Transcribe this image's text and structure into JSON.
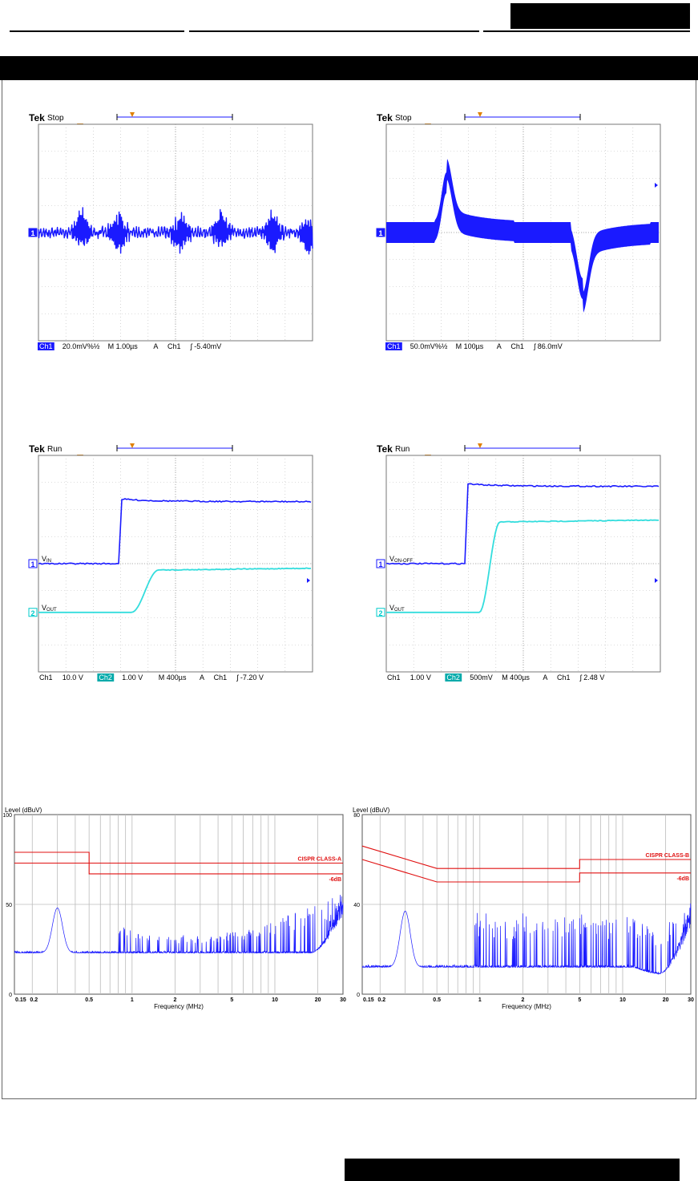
{
  "scopes": [
    {
      "id": "ripple",
      "brand": "Tek",
      "mode": "Stop",
      "status": [
        {
          "t": "Ch1",
          "boxed": true
        },
        {
          "t": "20.0mV%½",
          "boxed": false
        },
        {
          "t": "M 1.00µs",
          "boxed": false
        },
        {
          "t": "A",
          "boxed": false
        },
        {
          "t": "Ch1",
          "boxed": false
        },
        {
          "t": "ʃ -5.40mV",
          "boxed": false
        }
      ],
      "markers": [
        {
          "label": "1",
          "level": 0.5
        }
      ],
      "trace_color": "#1a1aff"
    },
    {
      "id": "transient",
      "brand": "Tek",
      "mode": "Stop",
      "status": [
        {
          "t": "Ch1",
          "boxed": true
        },
        {
          "t": "50.0mV%½",
          "boxed": false
        },
        {
          "t": "M 100µs",
          "boxed": false
        },
        {
          "t": "A",
          "boxed": false
        },
        {
          "t": "Ch1",
          "boxed": false
        },
        {
          "t": "ʃ  86.0mV",
          "boxed": false
        }
      ],
      "markers": [
        {
          "label": "1",
          "level": 0.5
        }
      ],
      "trace_color": "#1a1aff"
    },
    {
      "id": "startup-vin",
      "brand": "Tek",
      "mode": "Run",
      "status": [
        {
          "t": "Ch1",
          "boxed": false
        },
        {
          "t": "10.0 V",
          "boxed": false
        },
        {
          "t": "Ch2",
          "boxed": true
        },
        {
          "t": "1.00 V",
          "boxed": false
        },
        {
          "t": "M 400µs",
          "boxed": false
        },
        {
          "t": "A",
          "boxed": false
        },
        {
          "t": "Ch1",
          "boxed": false
        },
        {
          "t": "ʃ -7.20 V",
          "boxed": false
        }
      ],
      "markers": [
        {
          "label": "1",
          "level": 0.5,
          "name": "V",
          "sub": "IN"
        },
        {
          "label": "2",
          "level": 0.725,
          "name": "V",
          "sub": "OUT"
        }
      ],
      "trace_color": "#1a1aff"
    },
    {
      "id": "startup-onoff",
      "brand": "Tek",
      "mode": "Run",
      "status": [
        {
          "t": "Ch1",
          "boxed": false
        },
        {
          "t": "1.00 V",
          "boxed": false
        },
        {
          "t": "Ch2",
          "boxed": true
        },
        {
          "t": "500mV",
          "boxed": false
        },
        {
          "t": "M 400µs",
          "boxed": false
        },
        {
          "t": "A",
          "boxed": false
        },
        {
          "t": "Ch1",
          "boxed": false
        },
        {
          "t": "ʃ  2.48 V",
          "boxed": false
        }
      ],
      "markers": [
        {
          "label": "1",
          "level": 0.5,
          "name": "V",
          "sub": "ON-OFF"
        },
        {
          "label": "2",
          "level": 0.725,
          "name": "V",
          "sub": "OUT"
        }
      ],
      "trace_color": "#1a1aff"
    }
  ],
  "chart_data": [
    {
      "type": "line",
      "title": "",
      "ylabel": "Level (dBuV)",
      "xlabel": "Frequency (MHz)",
      "x_scale": "log",
      "xlim": [
        0.15,
        30
      ],
      "ylim": [
        0,
        100
      ],
      "ytick_labels": [
        "0",
        "50",
        "100"
      ],
      "xtick_labels": [
        {
          "v": 0.15,
          "t": "0.15"
        },
        {
          "v": 0.2,
          "t": "0.2"
        },
        {
          "v": 0.5,
          "t": "0.5"
        },
        {
          "v": 1,
          "t": "1"
        },
        {
          "v": 2,
          "t": "2"
        },
        {
          "v": 5,
          "t": "5"
        },
        {
          "v": 10,
          "t": "10"
        },
        {
          "v": 20,
          "t": "20"
        },
        {
          "v": 30,
          "t": "30"
        }
      ],
      "limit_lines": [
        {
          "name": "CISPR CLASS-A",
          "points": [
            [
              0.15,
              79
            ],
            [
              0.5,
              79
            ],
            [
              0.5,
              73
            ],
            [
              30,
              73
            ]
          ]
        },
        {
          "name": "-6dB",
          "points": [
            [
              0.15,
              73
            ],
            [
              0.5,
              73
            ],
            [
              0.5,
              67
            ],
            [
              30,
              67
            ]
          ]
        }
      ],
      "emission_peaks": [
        {
          "x": 0.3,
          "y": 48
        },
        {
          "x": 0.9,
          "y": 35
        },
        {
          "x": 1.2,
          "y": 32
        },
        {
          "x": 1.7,
          "y": 32
        },
        {
          "x": 2.5,
          "y": 33
        },
        {
          "x": 5,
          "y": 34
        },
        {
          "x": 10,
          "y": 34
        },
        {
          "x": 20,
          "y": 40
        },
        {
          "x": 30,
          "y": 53
        }
      ],
      "noise_floor": 23,
      "colors": {
        "limit": "#e01010",
        "trace": "#1a1aff",
        "grid": "#bbbbbb"
      }
    },
    {
      "type": "line",
      "title": "",
      "ylabel": "Level (dBuV)",
      "xlabel": "Frequency (MHz)",
      "x_scale": "log",
      "xlim": [
        0.15,
        30
      ],
      "ylim": [
        0,
        80
      ],
      "ytick_labels": [
        "0",
        "40",
        "80"
      ],
      "xtick_labels": [
        {
          "v": 0.15,
          "t": "0.15"
        },
        {
          "v": 0.2,
          "t": "0.2"
        },
        {
          "v": 0.5,
          "t": "0.5"
        },
        {
          "v": 1,
          "t": "1"
        },
        {
          "v": 2,
          "t": "2"
        },
        {
          "v": 5,
          "t": "5"
        },
        {
          "v": 10,
          "t": "10"
        },
        {
          "v": 20,
          "t": "20"
        },
        {
          "v": 30,
          "t": "30"
        }
      ],
      "limit_lines": [
        {
          "name": "CISPR CLASS-B",
          "points": [
            [
              0.15,
              66
            ],
            [
              0.5,
              56
            ],
            [
              5,
              56
            ],
            [
              5,
              60
            ],
            [
              30,
              60
            ]
          ]
        },
        {
          "name": "-6dB",
          "points": [
            [
              0.15,
              60
            ],
            [
              0.5,
              50
            ],
            [
              5,
              50
            ],
            [
              5,
              54
            ],
            [
              30,
              54
            ]
          ]
        }
      ],
      "emission_peaks": [
        {
          "x": 0.3,
          "y": 37
        },
        {
          "x": 0.6,
          "y": 30
        },
        {
          "x": 1,
          "y": 35
        },
        {
          "x": 1.5,
          "y": 33
        },
        {
          "x": 2,
          "y": 34
        },
        {
          "x": 5,
          "y": 35
        },
        {
          "x": 10,
          "y": 33
        },
        {
          "x": 20,
          "y": 30
        },
        {
          "x": 30,
          "y": 38
        }
      ],
      "noise_floor": 12,
      "colors": {
        "limit": "#e01010",
        "trace": "#1a1aff",
        "grid": "#bbbbbb"
      }
    }
  ]
}
